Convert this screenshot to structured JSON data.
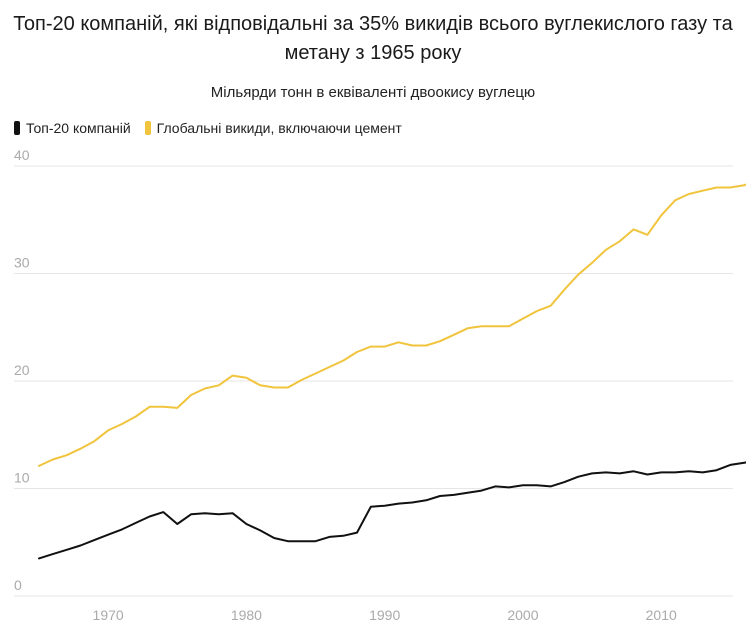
{
  "title": "Топ-20 компаній, які відповідальні за 35% викидів всього вуглекислого газу та метану з 1965 року",
  "subtitle": "Мільярди тонн в еквіваленті двоокису вуглецю",
  "chart_data": {
    "type": "line",
    "title": "Топ-20 компаній, які відповідальні за 35% викидів всього вуглекислого газу та метану з 1965 року",
    "ylabel": "Мільярди тонн в еквіваленті двоокису вуглецю",
    "xlim": [
      1965,
      2017
    ],
    "ylim": [
      0,
      40
    ],
    "x_ticks": [
      "1970",
      "1980",
      "1990",
      "2000",
      "2010"
    ],
    "y_ticks": [
      "0",
      "10",
      "20",
      "30",
      "40"
    ],
    "grid": true,
    "legend": "top-left",
    "x": [
      1965,
      1966,
      1967,
      1968,
      1969,
      1970,
      1971,
      1972,
      1973,
      1974,
      1975,
      1976,
      1977,
      1978,
      1979,
      1980,
      1981,
      1982,
      1983,
      1984,
      1985,
      1986,
      1987,
      1988,
      1989,
      1990,
      1991,
      1992,
      1993,
      1994,
      1995,
      1996,
      1997,
      1998,
      1999,
      2000,
      2001,
      2002,
      2003,
      2004,
      2005,
      2006,
      2007,
      2008,
      2009,
      2010,
      2011,
      2012,
      2013,
      2014,
      2015,
      2016,
      2017
    ],
    "series": [
      {
        "name": "Топ-20 компаній",
        "color": "#111111",
        "values": [
          3.5,
          3.9,
          4.3,
          4.7,
          5.2,
          5.7,
          6.2,
          6.8,
          7.4,
          7.8,
          6.7,
          7.6,
          7.7,
          7.6,
          7.7,
          6.7,
          6.1,
          5.4,
          5.1,
          5.1,
          5.1,
          5.5,
          5.6,
          5.9,
          8.3,
          8.4,
          8.6,
          8.7,
          8.9,
          9.3,
          9.4,
          9.6,
          9.8,
          10.2,
          10.1,
          10.3,
          10.3,
          10.2,
          10.6,
          11.1,
          11.4,
          11.5,
          11.4,
          11.6,
          11.3,
          11.5,
          11.5,
          11.6,
          11.5,
          11.7,
          12.2,
          12.4,
          12.6
        ]
      },
      {
        "name": "Глобальні викиди, включаючи цемент",
        "color": "#f0c43c",
        "values": [
          12.1,
          12.7,
          13.1,
          13.7,
          14.4,
          15.4,
          16.0,
          16.7,
          17.6,
          17.6,
          17.5,
          18.7,
          19.3,
          19.6,
          20.5,
          20.3,
          19.6,
          19.4,
          19.4,
          20.1,
          20.7,
          21.3,
          21.9,
          22.7,
          23.2,
          23.2,
          23.6,
          23.3,
          23.3,
          23.7,
          24.3,
          24.9,
          25.1,
          25.1,
          25.1,
          25.8,
          26.5,
          27.0,
          28.5,
          29.9,
          31.0,
          32.2,
          33.0,
          34.1,
          33.6,
          35.4,
          36.8,
          37.4,
          37.7,
          38.0,
          38.0,
          38.2,
          38.8
        ]
      }
    ]
  }
}
